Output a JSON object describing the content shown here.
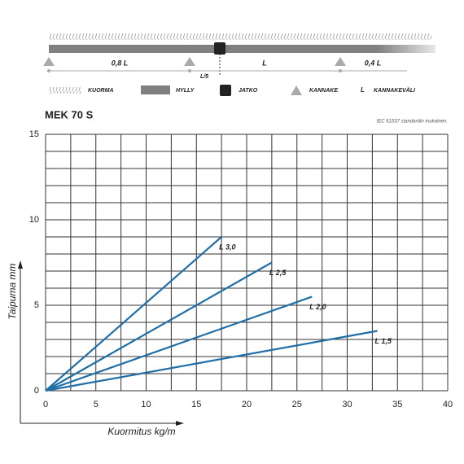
{
  "diagram": {
    "spans": [
      "0,8 L",
      "L",
      "0,4 L"
    ],
    "joint_offset": "L/5",
    "legend": [
      "KUORMA",
      "HYLLY",
      "JATKO",
      "KANNAKE",
      "L",
      "KANNAKEVÄLI"
    ]
  },
  "chart_data": {
    "type": "line",
    "title": "MEK 70 S",
    "note": "IEC 61537 standardin mukainen.",
    "x_label": "Kuormitus kg/m",
    "y_label": "Taipuma mm",
    "xlim": [
      0,
      40
    ],
    "ylim": [
      0,
      15
    ],
    "xticks": [
      0,
      5,
      10,
      15,
      20,
      25,
      30,
      35,
      40
    ],
    "yticks": [
      0,
      5,
      10,
      15
    ],
    "grid": {
      "x": 2.5,
      "y": 1
    },
    "series": [
      {
        "name": "L 3,0",
        "color": "#1f6ea8",
        "x": [
          0,
          17.5
        ],
        "values": [
          0,
          9.0
        ]
      },
      {
        "name": "L 2,5",
        "color": "#1f6ea8",
        "x": [
          0,
          22.5
        ],
        "values": [
          0,
          7.5
        ]
      },
      {
        "name": "L 2,0",
        "color": "#1f6ea8",
        "x": [
          0,
          26.5
        ],
        "values": [
          0,
          5.5
        ]
      },
      {
        "name": "L 1,5",
        "color": "#1f6ea8",
        "x": [
          0,
          33
        ],
        "values": [
          0,
          3.5
        ]
      }
    ]
  }
}
